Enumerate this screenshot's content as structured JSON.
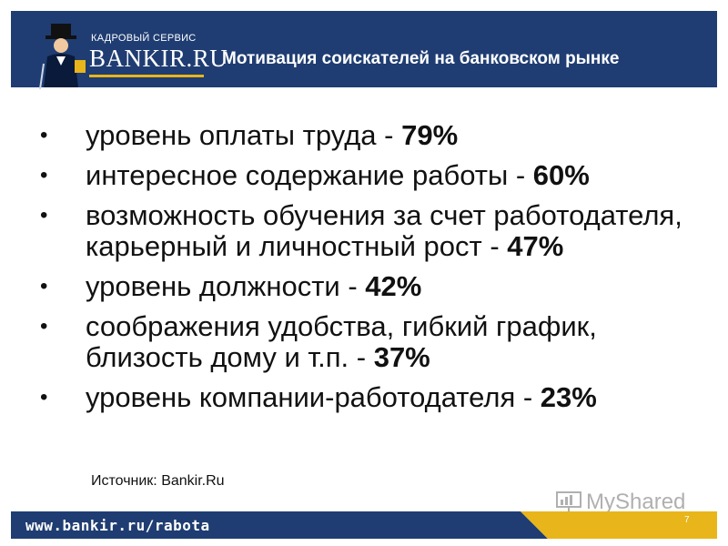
{
  "header": {
    "brand_small": "КАДРОВЫЙ СЕРВИС",
    "brand_name": "BANKIR.RU",
    "title": "Мотивация соискателей на банковском рынке",
    "bg_color": "#1f3d72",
    "accent_color": "#e8b51a"
  },
  "bullets": [
    {
      "text": "уровень оплаты труда - ",
      "value": "79%"
    },
    {
      "text": "интересное содержание работы - ",
      "value": "60%"
    },
    {
      "text": "возможность обучения за счет работодателя, карьерный и личностный рост - ",
      "value": "47%"
    },
    {
      "text": "уровень должности - ",
      "value": "42%"
    },
    {
      "text": "соображения удобства, гибкий график, близость  дому и т.п. - ",
      "value": "37%"
    },
    {
      "text": "уровень компании-работодателя - ",
      "value": "23%"
    }
  ],
  "bullet_glyph": "•",
  "source": "Источник: Bankir.Ru",
  "watermark": "MyShared",
  "footer": {
    "url": "www.bankir.ru/rabota",
    "page_number": "7",
    "colors": [
      "#1f3d72",
      "#e8b51a"
    ]
  }
}
